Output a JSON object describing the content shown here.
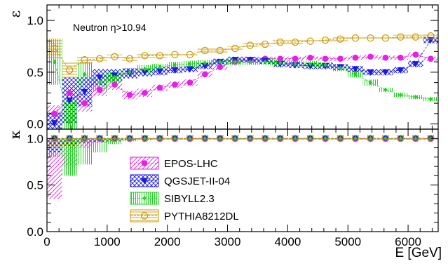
{
  "chart_data": [
    {
      "type": "line",
      "ylabel": "ε",
      "annotation": "Neutron η>10.94",
      "xlim": [
        0,
        6500
      ],
      "ylim": [
        -0.05,
        1.15
      ],
      "yticks": [
        "0.0",
        "0.5",
        "1.0"
      ],
      "x": [
        125,
        375,
        625,
        875,
        1125,
        1375,
        1625,
        1875,
        2125,
        2375,
        2625,
        2875,
        3125,
        3375,
        3625,
        3875,
        4125,
        4375,
        4625,
        4875,
        5125,
        5375,
        5625,
        5875,
        6125,
        6375
      ],
      "series": [
        {
          "name": "EPOS-LHC",
          "color": "#e61ee6",
          "marker": "circle-filled",
          "pattern": "diag",
          "values": [
            0.1,
            0.3,
            0.2,
            0.33,
            0.38,
            0.28,
            0.3,
            0.35,
            0.38,
            0.4,
            0.48,
            0.55,
            0.6,
            0.62,
            0.63,
            0.63,
            0.63,
            0.64,
            0.63,
            0.63,
            0.64,
            0.65,
            0.64,
            0.64,
            0.67,
            0.63
          ],
          "band": [
            0.08,
            0.1,
            0.08,
            0.06,
            0.05,
            0.04,
            0.04,
            0.03,
            0.03,
            0.03,
            0.03,
            0.03,
            0.02,
            0.02,
            0.02,
            0.02,
            0.02,
            0.02,
            0.02,
            0.02,
            0.02,
            0.02,
            0.02,
            0.02,
            0.02,
            0.02
          ]
        },
        {
          "name": "QGSJET-II-04",
          "color": "#1a1ae6",
          "marker": "triangle-down",
          "pattern": "cross",
          "values": [
            0.01,
            0.23,
            0.31,
            0.45,
            0.47,
            0.49,
            0.5,
            0.51,
            0.52,
            0.53,
            0.56,
            0.6,
            0.62,
            0.62,
            0.61,
            0.58,
            0.57,
            0.56,
            0.56,
            0.55,
            0.53,
            0.5,
            0.5,
            0.52,
            0.58,
            0.81
          ],
          "band": [
            0.1,
            0.22,
            0.14,
            0.08,
            0.06,
            0.05,
            0.04,
            0.04,
            0.03,
            0.03,
            0.03,
            0.03,
            0.03,
            0.03,
            0.03,
            0.03,
            0.03,
            0.03,
            0.03,
            0.03,
            0.03,
            0.03,
            0.03,
            0.03,
            0.03,
            0.03
          ]
        },
        {
          "name": "SIBYLL2.3",
          "color": "#1ed21e",
          "marker": "diamond-filled",
          "pattern": "vert",
          "values": [
            0.6,
            0.02,
            0.48,
            0.4,
            0.45,
            0.5,
            0.53,
            0.55,
            0.57,
            0.58,
            0.59,
            0.6,
            0.6,
            0.6,
            0.6,
            0.59,
            0.58,
            0.58,
            0.57,
            0.54,
            0.48,
            0.4,
            0.33,
            0.28,
            0.26,
            0.24
          ],
          "band": [
            0.22,
            0.2,
            0.12,
            0.08,
            0.05,
            0.04,
            0.04,
            0.03,
            0.03,
            0.03,
            0.03,
            0.03,
            0.03,
            0.03,
            0.03,
            0.03,
            0.03,
            0.03,
            0.03,
            0.03,
            0.03,
            0.03,
            0.02,
            0.02,
            0.02,
            0.02
          ]
        },
        {
          "name": "PYTHIA8212DL",
          "color": "#cc9900",
          "marker": "circle-open",
          "pattern": "horiz",
          "values": [
            0.73,
            0.52,
            0.62,
            0.63,
            0.65,
            0.63,
            0.66,
            0.66,
            0.67,
            0.67,
            0.71,
            0.71,
            0.73,
            0.76,
            0.77,
            0.79,
            0.79,
            0.8,
            0.81,
            0.82,
            0.83,
            0.83,
            0.83,
            0.84,
            0.84,
            0.85
          ],
          "band": [
            0.1,
            0.08,
            0.04,
            0.03,
            0.02,
            0.02,
            0.02,
            0.02,
            0.02,
            0.02,
            0.02,
            0.02,
            0.02,
            0.02,
            0.02,
            0.02,
            0.02,
            0.02,
            0.02,
            0.02,
            0.02,
            0.02,
            0.02,
            0.02,
            0.02,
            0.02
          ]
        }
      ]
    },
    {
      "type": "line",
      "ylabel": "κ",
      "xlabel": "E [GeV]",
      "xlim": [
        0,
        6500
      ],
      "ylim": [
        0,
        1.1
      ],
      "yticks": [
        "0.0",
        "0.5",
        "1.0"
      ],
      "xticks": [
        "0",
        "1000",
        "2000",
        "3000",
        "4000",
        "5000",
        "6000"
      ],
      "x": [
        125,
        375,
        625,
        875,
        1125,
        1375,
        1625,
        1875,
        2125,
        2375,
        2625,
        2875,
        3125,
        3375,
        3625,
        3875,
        4125,
        4375,
        4625,
        4875,
        5125,
        5375,
        5625,
        5875,
        6125,
        6375
      ],
      "series": [
        {
          "name": "EPOS-LHC",
          "color": "#e61ee6",
          "marker": "circle-filled",
          "pattern": "diag",
          "values": [
            1.0,
            1.0,
            1.0,
            1.0,
            1.0,
            1.0,
            1.0,
            1.0,
            1.0,
            1.0,
            1.0,
            1.0,
            1.0,
            1.0,
            1.0,
            1.0,
            1.0,
            1.0,
            1.0,
            1.0,
            1.0,
            1.0,
            1.0,
            1.0,
            1.0,
            1.0
          ],
          "band_lo": [
            0.35,
            0.7,
            0.9,
            0.95,
            0.97,
            0.98,
            0.99,
            0.99,
            0.99,
            0.99,
            0.99,
            0.99,
            0.99,
            0.99,
            0.99,
            0.99,
            0.99,
            0.99,
            0.99,
            0.99,
            0.99,
            0.99,
            0.99,
            0.99,
            0.99,
            0.99
          ]
        },
        {
          "name": "QGSJET-II-04",
          "color": "#1a1ae6",
          "marker": "triangle-down",
          "pattern": "cross",
          "values": [
            1.0,
            1.0,
            1.0,
            1.0,
            1.0,
            1.0,
            1.0,
            1.0,
            1.0,
            1.0,
            1.0,
            1.0,
            1.0,
            1.0,
            1.0,
            1.0,
            1.0,
            1.0,
            1.0,
            1.0,
            1.0,
            1.0,
            1.0,
            1.0,
            1.0,
            1.0
          ],
          "band_lo": [
            0.85,
            0.92,
            0.95,
            0.96,
            0.97,
            0.98,
            0.99,
            0.99,
            0.99,
            0.99,
            0.99,
            0.99,
            0.99,
            0.99,
            0.99,
            0.99,
            0.99,
            0.99,
            0.99,
            0.99,
            0.99,
            0.99,
            0.99,
            0.99,
            0.99,
            0.99
          ]
        },
        {
          "name": "SIBYLL2.3",
          "color": "#1ed21e",
          "marker": "diamond-filled",
          "pattern": "vert",
          "values": [
            1.0,
            1.0,
            1.0,
            1.0,
            1.0,
            1.0,
            1.0,
            1.0,
            1.0,
            1.0,
            1.0,
            1.0,
            1.0,
            1.0,
            1.0,
            1.0,
            1.0,
            1.0,
            1.0,
            1.0,
            1.0,
            1.0,
            1.0,
            1.0,
            1.0,
            1.0
          ],
          "band_lo": [
            0.8,
            0.6,
            0.72,
            0.85,
            0.94,
            0.97,
            0.98,
            0.99,
            0.99,
            0.99,
            0.99,
            0.99,
            0.99,
            0.99,
            0.99,
            0.99,
            0.99,
            0.99,
            0.99,
            0.99,
            0.99,
            0.99,
            0.99,
            0.99,
            0.99,
            0.99
          ]
        },
        {
          "name": "PYTHIA8212DL",
          "color": "#cc9900",
          "marker": "circle-open",
          "pattern": "horiz",
          "values": [
            1.0,
            1.0,
            1.0,
            1.0,
            1.0,
            1.0,
            1.0,
            1.0,
            1.0,
            1.0,
            1.0,
            1.0,
            1.0,
            1.0,
            1.0,
            1.0,
            1.0,
            1.0,
            1.0,
            1.0,
            1.0,
            1.0,
            1.0,
            1.0,
            1.0,
            1.0
          ],
          "band_lo": [
            0.9,
            0.92,
            0.96,
            0.98,
            0.99,
            0.99,
            0.99,
            0.99,
            0.99,
            0.99,
            0.99,
            0.99,
            0.99,
            0.99,
            0.99,
            0.99,
            0.99,
            0.99,
            0.99,
            0.99,
            0.99,
            0.99,
            0.99,
            0.99,
            0.99,
            0.99
          ]
        }
      ],
      "legend": [
        "EPOS-LHC",
        "QGSJET-II-04",
        "SIBYLL2.3",
        "PYTHIA8212DL"
      ]
    }
  ]
}
